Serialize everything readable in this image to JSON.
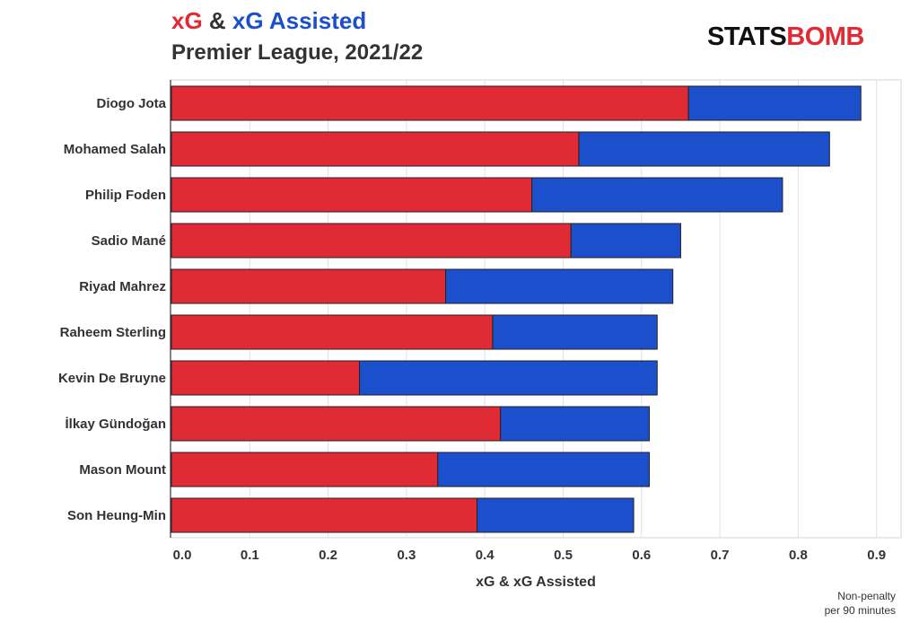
{
  "header": {
    "title_part1": "xG",
    "title_amp": " & ",
    "title_part2": "xG Assisted",
    "subtitle": "Premier League, 2021/22"
  },
  "logo": {
    "part1": "STATS",
    "part2": "BOMB"
  },
  "footnote": {
    "line1": "Non-penalty",
    "line2": "per 90 minutes"
  },
  "colors": {
    "xg": "#e02b35",
    "xga": "#1c4fcc",
    "grid": "#e2e2e2",
    "axis": "#333333"
  },
  "chart_data": {
    "type": "bar",
    "orientation": "horizontal",
    "stacked": true,
    "title": "xG & xG Assisted",
    "subtitle": "Premier League, 2021/22",
    "xlabel": "xG & xG Assisted",
    "ylabel": "",
    "xlim": [
      0,
      0.92
    ],
    "xticks": [
      0.0,
      0.1,
      0.2,
      0.3,
      0.4,
      0.5,
      0.6,
      0.7,
      0.8,
      0.9
    ],
    "xtick_labels": [
      "0.0",
      "0.1",
      "0.2",
      "0.3",
      "0.4",
      "0.5",
      "0.6",
      "0.7",
      "0.8",
      "0.9"
    ],
    "grid": true,
    "categories": [
      "Diogo Jota",
      "Mohamed Salah",
      "Philip Foden",
      "Sadio Mané",
      "Riyad Mahrez",
      "Raheem Sterling",
      "Kevin De Bruyne",
      "İlkay Gündoğan",
      "Mason Mount",
      "Son Heung-Min"
    ],
    "series": [
      {
        "name": "xG",
        "values": [
          0.66,
          0.52,
          0.46,
          0.51,
          0.35,
          0.41,
          0.24,
          0.42,
          0.34,
          0.39
        ]
      },
      {
        "name": "xG Assisted",
        "values": [
          0.22,
          0.32,
          0.32,
          0.14,
          0.29,
          0.21,
          0.38,
          0.19,
          0.27,
          0.2
        ]
      }
    ]
  }
}
